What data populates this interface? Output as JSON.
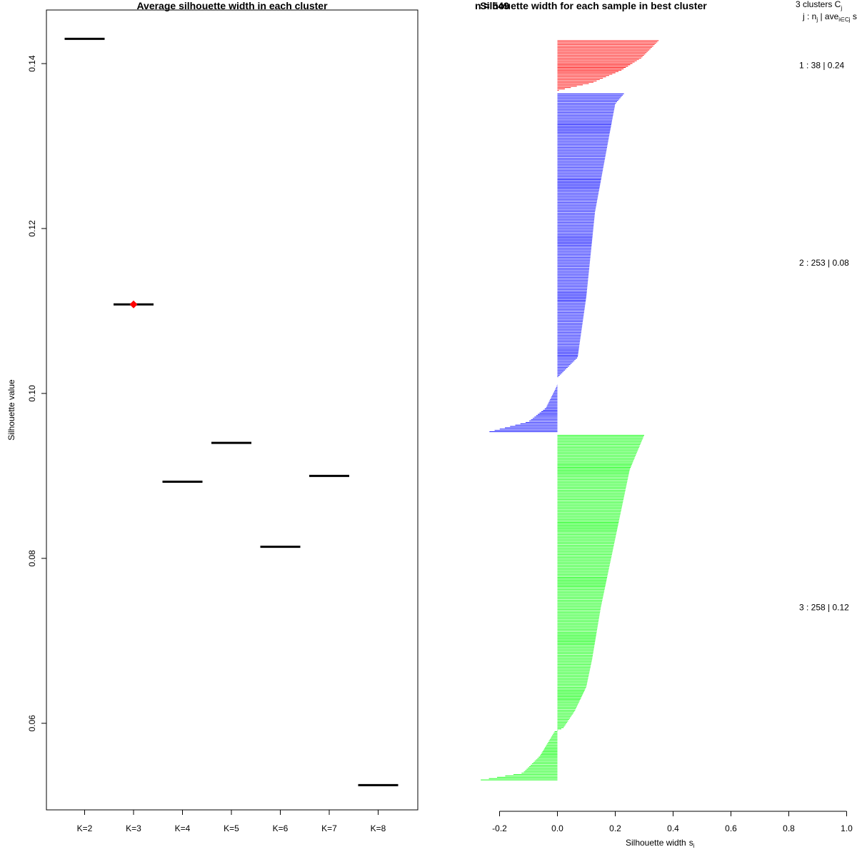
{
  "chart_data": [
    {
      "type": "scatter",
      "title": "Average silhouette width in each cluster",
      "xlabel": "",
      "ylabel": "Silhouette value",
      "categories": [
        "K=2",
        "K=3",
        "K=4",
        "K=5",
        "K=6",
        "K=7",
        "K=8"
      ],
      "values": [
        0.143,
        0.1108,
        0.0893,
        0.094,
        0.0814,
        0.09,
        0.0525
      ],
      "highlight": {
        "category": "K=3",
        "value": 0.1108,
        "color": "#ff0000",
        "marker": "diamond"
      },
      "yticks": [
        0.06,
        0.08,
        0.1,
        0.12,
        0.14
      ],
      "ylim": [
        0.0495,
        0.1465
      ],
      "grid": false
    },
    {
      "type": "bar",
      "orientation": "horizontal",
      "title": "Silhouette width for each sample in best cluster",
      "overlapping_label": "n = 549",
      "xlabel": "Silhouette width",
      "xlabel_subscript": "i",
      "xlabel_prefix_symbol": "s",
      "xticks": [
        "-0.2",
        "0.0",
        "0.2",
        "0.4",
        "0.6",
        "0.8",
        "1.0"
      ],
      "xlim": [
        -0.2,
        1.0
      ],
      "legend_header": {
        "line1": "3  clusters  C",
        "line1_sub": "j",
        "line2_a": "j :  n",
        "line2_sub1": "j",
        "line2_b": " | ave",
        "line2_sub2": "i∈Cj",
        "line2_c": "  s",
        "line2_sub3": "i"
      },
      "series": [
        {
          "name": "1",
          "n": 38,
          "avg": "0.24",
          "color": "#ff0000",
          "label": "1 :   38  |  0.24",
          "profile": [
            [
              0,
              0.35
            ],
            [
              0.35,
              0.29
            ],
            [
              0.6,
              0.22
            ],
            [
              0.85,
              0.12
            ],
            [
              1,
              0.005
            ]
          ]
        },
        {
          "name": "2",
          "n": 253,
          "avg": "0.08",
          "color": "#0000ff",
          "label": "2 :   253  |  0.08",
          "profile": [
            [
              0,
              0.23
            ],
            [
              0.03,
              0.2
            ],
            [
              0.12,
              0.18
            ],
            [
              0.35,
              0.13
            ],
            [
              0.6,
              0.1
            ],
            [
              0.78,
              0.07
            ],
            [
              0.84,
              0.0
            ],
            [
              0.86,
              0.0
            ],
            [
              0.87,
              -0.005
            ],
            [
              0.93,
              -0.04
            ],
            [
              0.97,
              -0.1
            ],
            [
              1,
              -0.235
            ]
          ]
        },
        {
          "name": "3",
          "n": 258,
          "avg": "0.12",
          "color": "#00ff00",
          "label": "3 :   258  |  0.12",
          "profile": [
            [
              0,
              0.3
            ],
            [
              0.1,
              0.25
            ],
            [
              0.3,
              0.2
            ],
            [
              0.5,
              0.15
            ],
            [
              0.65,
              0.12
            ],
            [
              0.73,
              0.1
            ],
            [
              0.8,
              0.06
            ],
            [
              0.85,
              0.02
            ],
            [
              0.86,
              -0.01
            ],
            [
              0.93,
              -0.06
            ],
            [
              0.98,
              -0.12
            ],
            [
              1,
              -0.265
            ]
          ]
        }
      ]
    }
  ]
}
